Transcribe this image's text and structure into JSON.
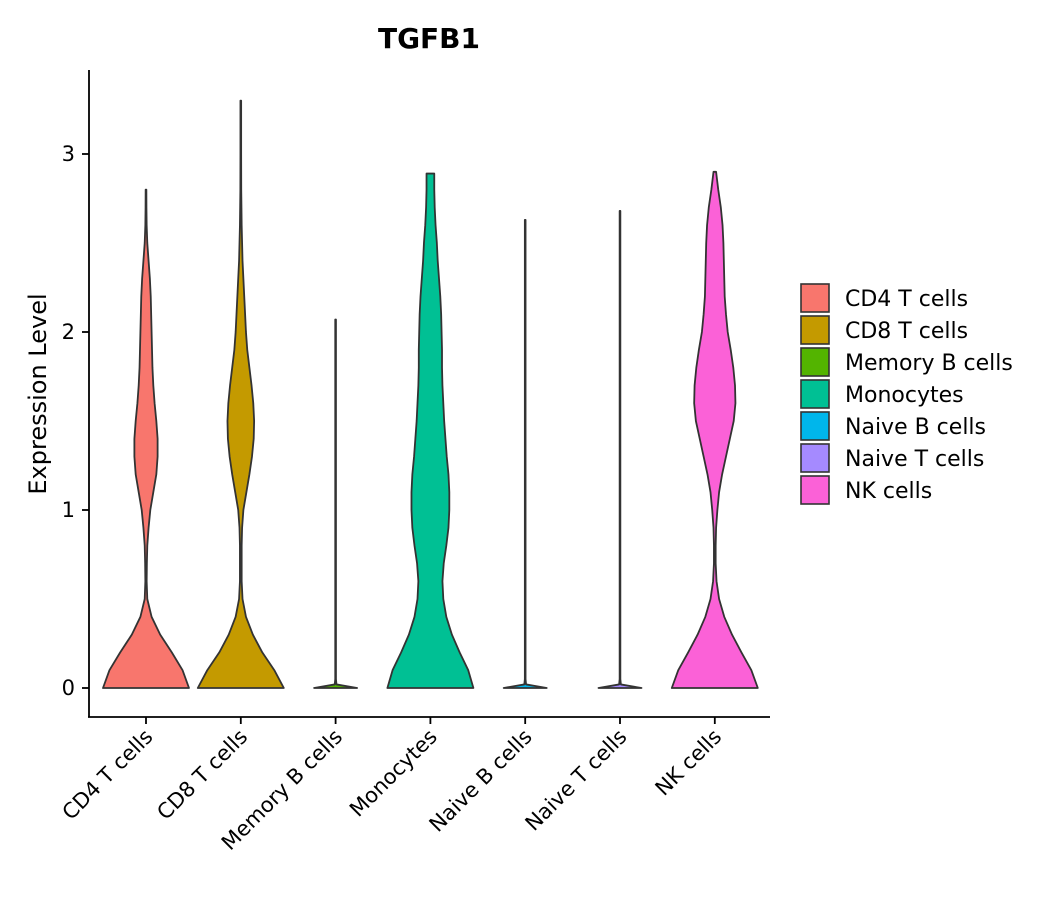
{
  "chart_data": {
    "type": "violin",
    "title": "TGFB1",
    "xlabel": "",
    "ylabel": "Expression Level",
    "ylim": [
      -0.16,
      3.45
    ],
    "yticks": [
      0,
      1,
      2,
      3
    ],
    "grid": false,
    "legend_position": "right",
    "categories": [
      "CD4 T cells",
      "CD8 T cells",
      "Memory B cells",
      "Monocytes",
      "Naive B cells",
      "Naive T cells",
      "NK cells"
    ],
    "colors": [
      "#F8766D",
      "#C49A00",
      "#53B400",
      "#00C094",
      "#00B6EB",
      "#A58AFF",
      "#FB61D7"
    ],
    "series": [
      {
        "name": "CD4 T cells",
        "max": 2.8,
        "profile": [
          [
            0,
            1.0
          ],
          [
            0.1,
            0.85
          ],
          [
            0.2,
            0.6
          ],
          [
            0.3,
            0.33
          ],
          [
            0.4,
            0.13
          ],
          [
            0.5,
            0.03
          ],
          [
            0.6,
            0.015
          ],
          [
            0.7,
            0.02
          ],
          [
            0.8,
            0.03
          ],
          [
            0.9,
            0.06
          ],
          [
            1.0,
            0.1
          ],
          [
            1.1,
            0.17
          ],
          [
            1.2,
            0.24
          ],
          [
            1.3,
            0.27
          ],
          [
            1.4,
            0.27
          ],
          [
            1.5,
            0.24
          ],
          [
            1.6,
            0.2
          ],
          [
            1.7,
            0.17
          ],
          [
            1.8,
            0.15
          ],
          [
            1.9,
            0.14
          ],
          [
            2.0,
            0.13
          ],
          [
            2.1,
            0.12
          ],
          [
            2.2,
            0.11
          ],
          [
            2.3,
            0.09
          ],
          [
            2.4,
            0.06
          ],
          [
            2.5,
            0.03
          ],
          [
            2.6,
            0.015
          ],
          [
            2.7,
            0.01
          ],
          [
            2.8,
            0.005
          ]
        ]
      },
      {
        "name": "CD8 T cells",
        "max": 3.3,
        "profile": [
          [
            0,
            1.0
          ],
          [
            0.1,
            0.78
          ],
          [
            0.2,
            0.5
          ],
          [
            0.3,
            0.28
          ],
          [
            0.4,
            0.12
          ],
          [
            0.5,
            0.04
          ],
          [
            0.6,
            0.02
          ],
          [
            0.7,
            0.02
          ],
          [
            0.8,
            0.02
          ],
          [
            0.9,
            0.03
          ],
          [
            1.0,
            0.06
          ],
          [
            1.1,
            0.13
          ],
          [
            1.2,
            0.2
          ],
          [
            1.3,
            0.26
          ],
          [
            1.4,
            0.3
          ],
          [
            1.5,
            0.31
          ],
          [
            1.6,
            0.29
          ],
          [
            1.7,
            0.25
          ],
          [
            1.8,
            0.2
          ],
          [
            1.9,
            0.15
          ],
          [
            2.0,
            0.12
          ],
          [
            2.1,
            0.1
          ],
          [
            2.2,
            0.08
          ],
          [
            2.3,
            0.06
          ],
          [
            2.4,
            0.04
          ],
          [
            2.5,
            0.03
          ],
          [
            2.6,
            0.02
          ],
          [
            2.7,
            0.015
          ],
          [
            2.8,
            0.01
          ],
          [
            3.0,
            0.006
          ],
          [
            3.3,
            0.005
          ]
        ]
      },
      {
        "name": "Memory B cells",
        "max": 2.07,
        "profile": [
          [
            0,
            0.5
          ],
          [
            0.02,
            0.02
          ],
          [
            0.05,
            0.008
          ],
          [
            2.07,
            0.006
          ]
        ]
      },
      {
        "name": "Monocytes",
        "max": 2.89,
        "profile": [
          [
            0,
            1.0
          ],
          [
            0.1,
            0.88
          ],
          [
            0.2,
            0.68
          ],
          [
            0.3,
            0.5
          ],
          [
            0.4,
            0.37
          ],
          [
            0.5,
            0.3
          ],
          [
            0.6,
            0.28
          ],
          [
            0.7,
            0.31
          ],
          [
            0.8,
            0.37
          ],
          [
            0.9,
            0.42
          ],
          [
            1.0,
            0.44
          ],
          [
            1.1,
            0.44
          ],
          [
            1.2,
            0.42
          ],
          [
            1.3,
            0.38
          ],
          [
            1.4,
            0.35
          ],
          [
            1.5,
            0.32
          ],
          [
            1.6,
            0.3
          ],
          [
            1.7,
            0.28
          ],
          [
            1.8,
            0.27
          ],
          [
            1.9,
            0.27
          ],
          [
            2.0,
            0.26
          ],
          [
            2.1,
            0.25
          ],
          [
            2.2,
            0.23
          ],
          [
            2.3,
            0.2
          ],
          [
            2.4,
            0.17
          ],
          [
            2.5,
            0.15
          ],
          [
            2.6,
            0.12
          ],
          [
            2.7,
            0.1
          ],
          [
            2.8,
            0.09
          ],
          [
            2.89,
            0.09
          ]
        ]
      },
      {
        "name": "Naive B cells",
        "max": 2.63,
        "profile": [
          [
            0,
            0.5
          ],
          [
            0.02,
            0.02
          ],
          [
            0.05,
            0.008
          ],
          [
            2.63,
            0.006
          ]
        ]
      },
      {
        "name": "Naive T cells",
        "max": 2.68,
        "profile": [
          [
            0,
            0.5
          ],
          [
            0.02,
            0.02
          ],
          [
            0.05,
            0.008
          ],
          [
            2.68,
            0.006
          ]
        ]
      },
      {
        "name": "NK cells",
        "max": 2.9,
        "profile": [
          [
            0,
            1.0
          ],
          [
            0.1,
            0.85
          ],
          [
            0.2,
            0.62
          ],
          [
            0.3,
            0.4
          ],
          [
            0.4,
            0.22
          ],
          [
            0.5,
            0.1
          ],
          [
            0.6,
            0.04
          ],
          [
            0.7,
            0.02
          ],
          [
            0.8,
            0.02
          ],
          [
            0.9,
            0.03
          ],
          [
            1.0,
            0.06
          ],
          [
            1.1,
            0.1
          ],
          [
            1.2,
            0.17
          ],
          [
            1.3,
            0.26
          ],
          [
            1.4,
            0.35
          ],
          [
            1.5,
            0.44
          ],
          [
            1.6,
            0.48
          ],
          [
            1.7,
            0.47
          ],
          [
            1.8,
            0.43
          ],
          [
            1.9,
            0.37
          ],
          [
            2.0,
            0.3
          ],
          [
            2.1,
            0.26
          ],
          [
            2.2,
            0.23
          ],
          [
            2.3,
            0.22
          ],
          [
            2.4,
            0.21
          ],
          [
            2.5,
            0.2
          ],
          [
            2.6,
            0.18
          ],
          [
            2.7,
            0.14
          ],
          [
            2.8,
            0.08
          ],
          [
            2.9,
            0.03
          ]
        ]
      }
    ]
  }
}
